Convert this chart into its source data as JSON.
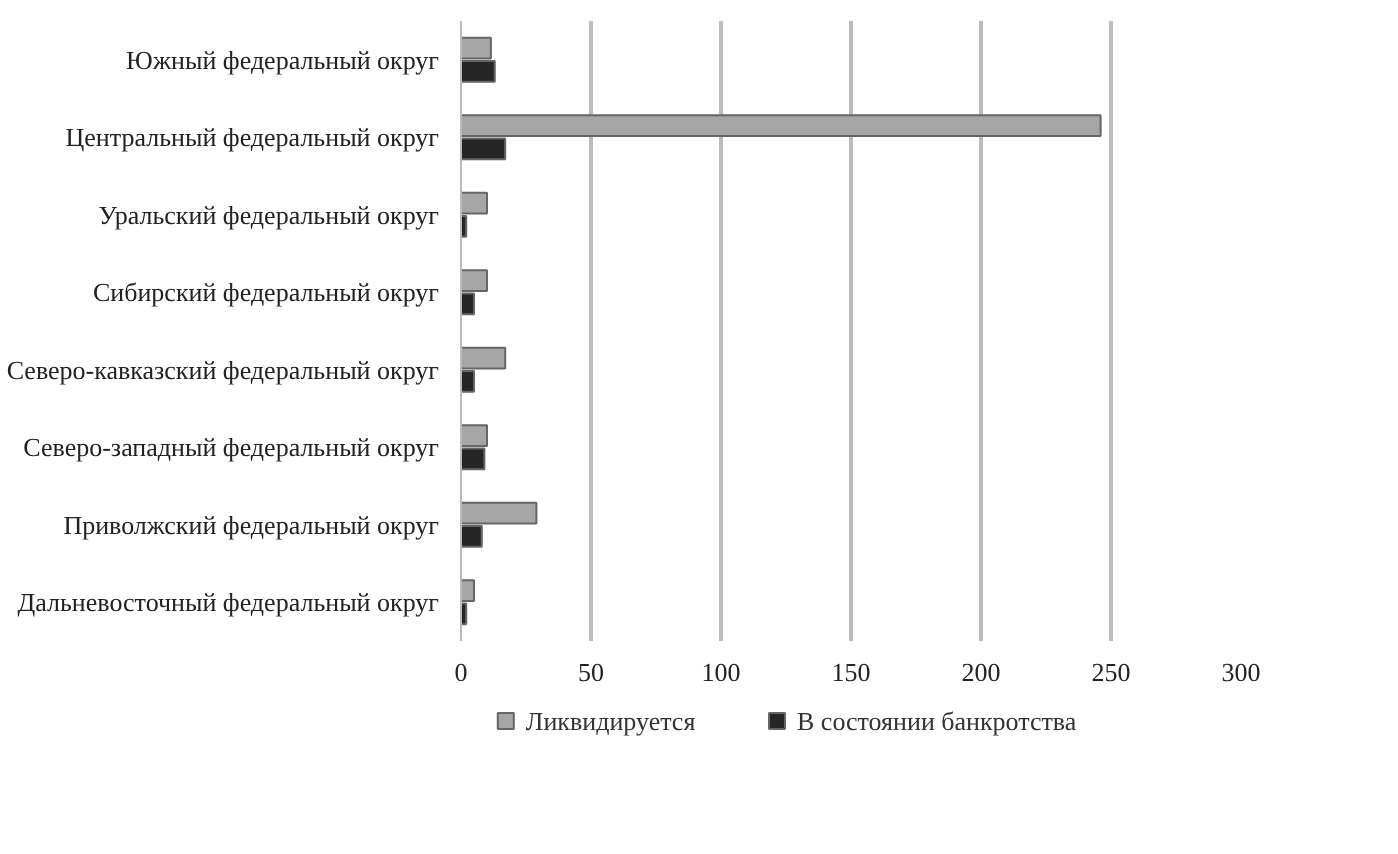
{
  "chart_data": {
    "type": "bar",
    "orientation": "horizontal",
    "categories": [
      "Южный федеральный округ",
      "Центральный федеральный округ",
      "Уральский федеральный округ",
      "Сибирский федеральный округ",
      "Северо-кавказский федеральный округ",
      "Северо-западный федеральный округ",
      "Приволжский федеральный округ",
      "Дальневосточный федеральный округ"
    ],
    "series": [
      {
        "name": "Ликвидируется",
        "color": "#a6a6a6",
        "values": [
          11.5,
          246,
          10,
          10,
          17,
          10,
          29,
          5
        ]
      },
      {
        "name": "В состоянии банкротства",
        "color": "#262626",
        "values": [
          13,
          17,
          2,
          5,
          5,
          9,
          8,
          2
        ]
      }
    ],
    "xlim": [
      0,
      300
    ],
    "xticks": [
      0,
      50,
      100,
      150,
      200,
      250,
      300
    ],
    "grid": "x",
    "legend": "bottom"
  }
}
